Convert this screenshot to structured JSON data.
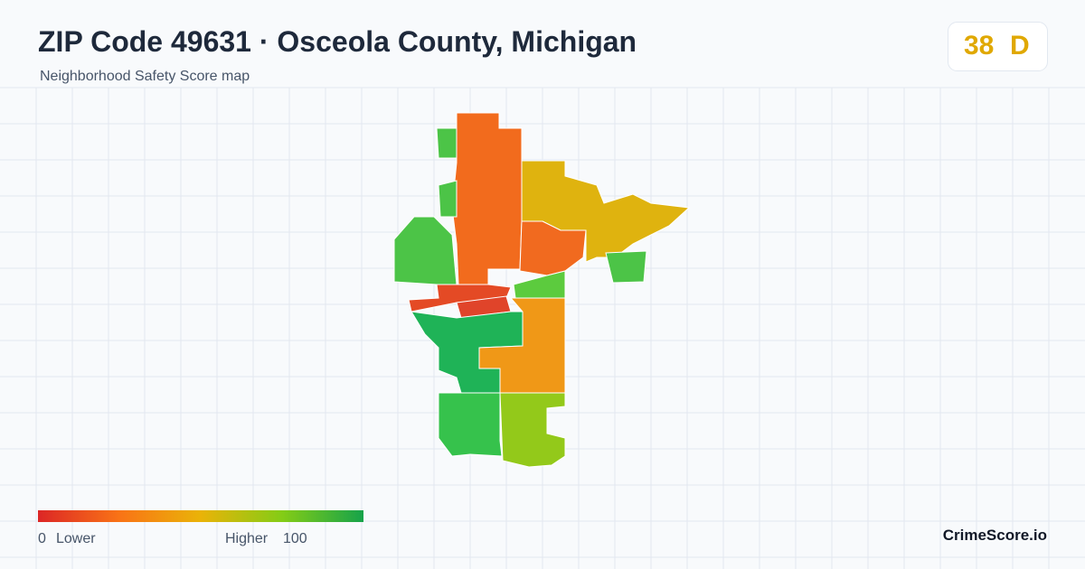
{
  "header": {
    "title": "ZIP Code 49631 · Osceola County, Michigan",
    "subtitle": "Neighborhood Safety Score map"
  },
  "badge": {
    "score": "38",
    "grade": "D"
  },
  "legend": {
    "min": "0",
    "min_label": "Lower",
    "max_label": "Higher",
    "max": "100"
  },
  "footer": {
    "brand": "CrimeScore.io"
  }
}
